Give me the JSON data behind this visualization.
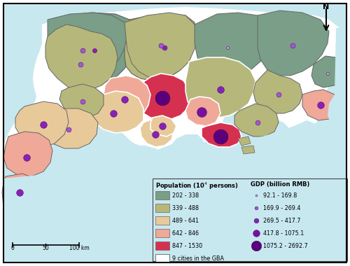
{
  "background_color": "#c8e8f0",
  "land_bg": "#ffffff",
  "border_color": "#666666",
  "pop_colors": {
    "202-338": "#7a9e87",
    "339-488": "#b5b87a",
    "489-641": "#e8c99a",
    "642-846": "#f0a898",
    "847-1530": "#d63050"
  },
  "legend_pop_labels": [
    "202 - 338",
    "339 - 488",
    "489 - 641",
    "642 - 846",
    "847 - 1530"
  ],
  "legend_gdp_labels": [
    "92.1 - 169.8",
    "169.9 - 269.4",
    "269.5 - 417.7",
    "417.8 - 1075.1",
    "1075.2 - 2692.7"
  ],
  "gdp_dot_sizes": [
    3,
    5,
    7,
    10,
    15
  ],
  "gdp_dot_colors": [
    "#c49ad8",
    "#a855d4",
    "#8b20b8",
    "#7b10a0",
    "#5b007a"
  ],
  "gba_label": "9 cities in the GBA",
  "pop_header": "Population (10$^4$ persons)",
  "gdp_header": "GDP (billion RMB)"
}
